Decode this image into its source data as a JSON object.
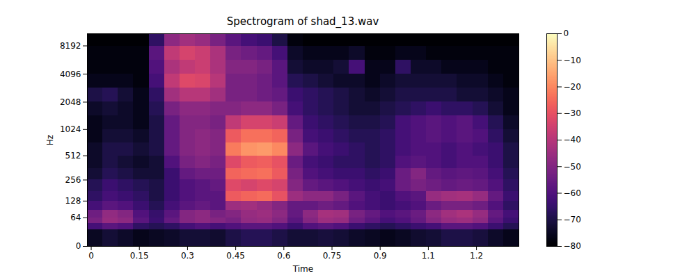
{
  "chart_data": {
    "type": "heatmap",
    "title": "Spectrogram of shad_13.wav",
    "x_label": "Time",
    "y_label": "Hz",
    "log": "y",
    "xlim": [
      -0.012,
      1.332
    ],
    "xticks": [
      0,
      0.15,
      0.3,
      0.45,
      0.6,
      0.75,
      0.9,
      {
        "value": 1.05,
        "label": "1.1"
      },
      1.2
    ],
    "ylim": [
      0,
      11025
    ],
    "yticks": [
      0,
      64,
      128,
      256,
      512,
      1024,
      2048,
      4096,
      8192
    ],
    "time_bins": [
      -0.012,
      0.036,
      0.084,
      0.132,
      0.18,
      0.228,
      0.276,
      0.324,
      0.372,
      0.42,
      0.468,
      0.516,
      0.564,
      0.612,
      0.66,
      0.708,
      0.756,
      0.804,
      0.852,
      0.9,
      0.948,
      0.996,
      1.044,
      1.092,
      1.14,
      1.188,
      1.236,
      1.284,
      1.332
    ],
    "freq_bins": [
      0,
      32,
      48,
      64,
      90,
      128,
      180,
      256,
      360,
      512,
      720,
      1024,
      1450,
      2048,
      2900,
      4096,
      5800,
      8192,
      11025
    ],
    "cells": [
      [
        -75,
        -72,
        -74,
        -76,
        -75,
        -74,
        -72,
        -72,
        -73,
        -70,
        -68,
        -68,
        -70,
        -72,
        -72,
        -71,
        -72,
        -74,
        -75,
        -76,
        -75,
        -73,
        -72,
        -70,
        -70,
        -71,
        -74,
        -76
      ],
      [
        -62,
        -58,
        -60,
        -66,
        -68,
        -66,
        -62,
        -60,
        -62,
        -60,
        -58,
        -58,
        -60,
        -64,
        -60,
        -58,
        -60,
        -64,
        -66,
        -68,
        -66,
        -64,
        -62,
        -58,
        -58,
        -60,
        -64,
        -68
      ],
      [
        -52,
        -46,
        -48,
        -58,
        -64,
        -56,
        -50,
        -48,
        -50,
        -52,
        -47,
        -46,
        -50,
        -58,
        -50,
        -45,
        -46,
        -54,
        -58,
        -62,
        -60,
        -56,
        -50,
        -46,
        -45,
        -48,
        -58,
        -64
      ],
      [
        -54,
        -47,
        -50,
        -60,
        -65,
        -58,
        -50,
        -48,
        -52,
        -50,
        -46,
        -45,
        -48,
        -56,
        -48,
        -43,
        -44,
        -52,
        -56,
        -60,
        -58,
        -55,
        -48,
        -44,
        -42,
        -46,
        -56,
        -62
      ],
      [
        -62,
        -58,
        -60,
        -64,
        -68,
        -62,
        -58,
        -56,
        -58,
        -45,
        -44,
        -46,
        -50,
        -56,
        -56,
        -54,
        -56,
        -60,
        -62,
        -64,
        -62,
        -60,
        -55,
        -52,
        -52,
        -54,
        -60,
        -66
      ],
      [
        -66,
        -62,
        -64,
        -66,
        -70,
        -64,
        -60,
        -58,
        -58,
        -28,
        -26,
        -25,
        -30,
        -45,
        -48,
        -48,
        -52,
        -58,
        -62,
        -64,
        -60,
        -58,
        -46,
        -44,
        -43,
        -46,
        -56,
        -64
      ],
      [
        -68,
        -64,
        -66,
        -68,
        -70,
        -64,
        -60,
        -58,
        -56,
        -32,
        -34,
        -32,
        -34,
        -50,
        -56,
        -58,
        -60,
        -62,
        -64,
        -62,
        -55,
        -52,
        -54,
        -56,
        -55,
        -56,
        -60,
        -66
      ],
      [
        -72,
        -68,
        -70,
        -72,
        -72,
        -64,
        -56,
        -54,
        -54,
        -26,
        -25,
        -24,
        -28,
        -52,
        -60,
        -62,
        -64,
        -64,
        -66,
        -64,
        -55,
        -50,
        -56,
        -58,
        -57,
        -58,
        -62,
        -68
      ],
      [
        -74,
        -70,
        -72,
        -74,
        -72,
        -60,
        -52,
        -50,
        -52,
        -32,
        -28,
        -27,
        -30,
        -55,
        -62,
        -64,
        -66,
        -66,
        -68,
        -66,
        -60,
        -58,
        -60,
        -62,
        -60,
        -60,
        -64,
        -70
      ],
      [
        -74,
        -70,
        -70,
        -72,
        -70,
        -56,
        -50,
        -48,
        -50,
        -22,
        -18,
        -17,
        -20,
        -48,
        -58,
        -62,
        -64,
        -66,
        -68,
        -66,
        -62,
        -60,
        -60,
        -62,
        -60,
        -62,
        -64,
        -70
      ],
      [
        -76,
        -72,
        -72,
        -74,
        -70,
        -56,
        -50,
        -48,
        -50,
        -28,
        -24,
        -24,
        -26,
        -52,
        -62,
        -64,
        -66,
        -68,
        -68,
        -66,
        -62,
        -60,
        -58,
        -60,
        -58,
        -60,
        -66,
        -72
      ],
      [
        -76,
        -74,
        -74,
        -76,
        -70,
        -56,
        -50,
        -50,
        -52,
        -38,
        -34,
        -34,
        -36,
        -56,
        -64,
        -66,
        -68,
        -70,
        -70,
        -68,
        -62,
        -60,
        -58,
        -60,
        -58,
        -62,
        -68,
        -74
      ],
      [
        -74,
        -72,
        -74,
        -76,
        -68,
        -52,
        -48,
        -48,
        -50,
        -50,
        -48,
        -48,
        -52,
        -62,
        -66,
        -68,
        -70,
        -72,
        -72,
        -70,
        -68,
        -66,
        -64,
        -66,
        -66,
        -68,
        -72,
        -76
      ],
      [
        -70,
        -68,
        -72,
        -76,
        -66,
        -44,
        -40,
        -40,
        -44,
        -52,
        -52,
        -54,
        -56,
        -64,
        -66,
        -68,
        -70,
        -72,
        -74,
        -72,
        -70,
        -70,
        -70,
        -70,
        -72,
        -72,
        -74,
        -76
      ],
      [
        -76,
        -76,
        -76,
        -78,
        -62,
        -38,
        -32,
        -33,
        -40,
        -52,
        -52,
        -54,
        -58,
        -68,
        -70,
        -72,
        -74,
        -74,
        -76,
        -74,
        -72,
        -72,
        -72,
        -72,
        -74,
        -74,
        -76,
        -78
      ],
      [
        -78,
        -78,
        -78,
        -78,
        -60,
        -42,
        -38,
        -36,
        -42,
        -50,
        -50,
        -52,
        -58,
        -72,
        -74,
        -74,
        -72,
        -62,
        -76,
        -76,
        -66,
        -74,
        -74,
        -76,
        -76,
        -76,
        -78,
        -78
      ],
      [
        -78,
        -78,
        -78,
        -78,
        -58,
        -38,
        -34,
        -36,
        -42,
        -52,
        -54,
        -56,
        -62,
        -74,
        -76,
        -76,
        -76,
        -74,
        -78,
        -78,
        -76,
        -76,
        -78,
        -78,
        -78,
        -78,
        -78,
        -78
      ],
      [
        -80,
        -80,
        -80,
        -80,
        -66,
        -48,
        -44,
        -46,
        -52,
        -58,
        -62,
        -64,
        -70,
        -78,
        -80,
        -80,
        -80,
        -80,
        -80,
        -80,
        -80,
        -80,
        -80,
        -80,
        -80,
        -80,
        -80,
        -80
      ]
    ],
    "colorbar_range": [
      -80,
      0
    ],
    "colorbar_ticks": [
      0,
      {
        "value": -10,
        "label": "−10"
      },
      {
        "value": -20,
        "label": "−20"
      },
      {
        "value": -30,
        "label": "−30"
      },
      {
        "value": -40,
        "label": "−40"
      },
      {
        "value": -50,
        "label": "−50"
      },
      {
        "value": -60,
        "label": "−60"
      },
      {
        "value": -70,
        "label": "−70"
      },
      {
        "value": -80,
        "label": "−80"
      }
    ]
  }
}
